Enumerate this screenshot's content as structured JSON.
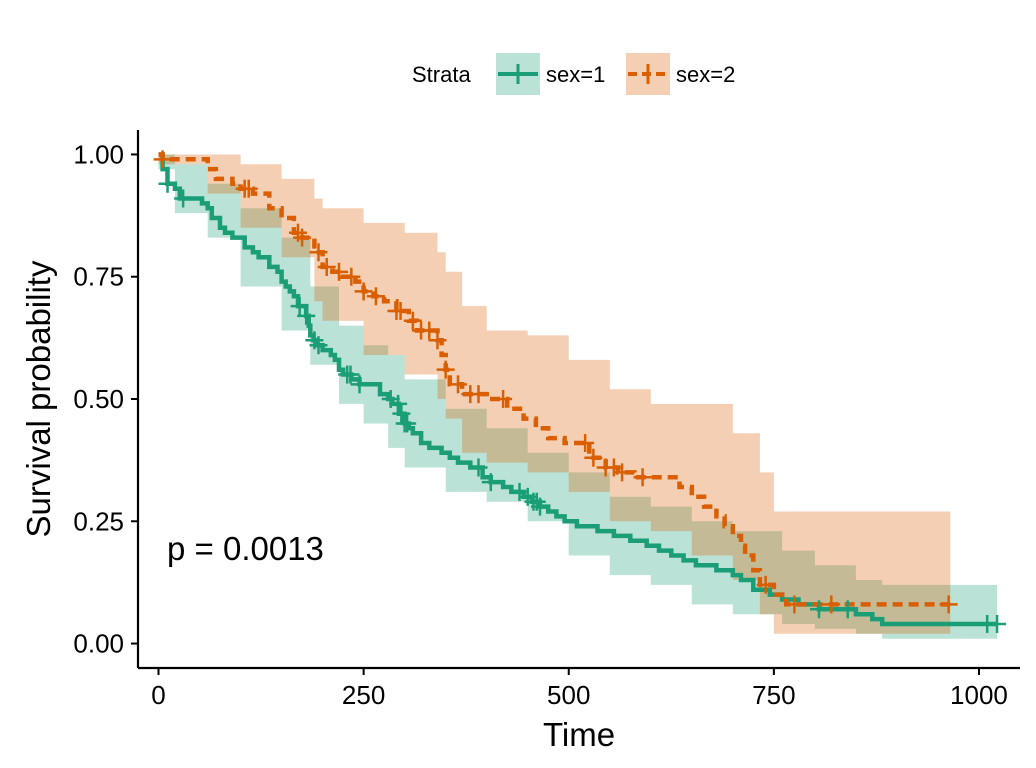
{
  "chart_data": {
    "type": "line",
    "subtype": "kaplan-meier",
    "xlabel": "Time",
    "ylabel": "Survival probability",
    "xlim": [
      -25,
      1050
    ],
    "ylim": [
      -0.05,
      1.05
    ],
    "xticks": [
      0,
      250,
      500,
      750,
      1000
    ],
    "xtick_labels": [
      "0",
      "250",
      "500",
      "750",
      "1000"
    ],
    "yticks": [
      0,
      0.25,
      0.5,
      0.75,
      1.0
    ],
    "ytick_labels": [
      "0.00",
      "0.25",
      "0.50",
      "0.75",
      "1.00"
    ],
    "annotation": "p = 0.0013",
    "grid": false,
    "legend": {
      "title": "Strata",
      "placement": "top",
      "entries": [
        "sex=1",
        "sex=2"
      ]
    },
    "series": [
      {
        "name": "sex=1",
        "color": "#1b9e77",
        "line_style": "solid",
        "steps": [
          [
            0,
            1.0
          ],
          [
            5,
            0.97
          ],
          [
            11,
            0.94
          ],
          [
            20,
            0.93
          ],
          [
            26,
            0.91
          ],
          [
            50,
            0.91
          ],
          [
            53,
            0.9
          ],
          [
            60,
            0.89
          ],
          [
            65,
            0.87
          ],
          [
            75,
            0.85
          ],
          [
            81,
            0.84
          ],
          [
            90,
            0.83
          ],
          [
            105,
            0.81
          ],
          [
            115,
            0.8
          ],
          [
            122,
            0.79
          ],
          [
            135,
            0.77
          ],
          [
            145,
            0.76
          ],
          [
            150,
            0.74
          ],
          [
            155,
            0.73
          ],
          [
            160,
            0.72
          ],
          [
            165,
            0.71
          ],
          [
            170,
            0.69
          ],
          [
            180,
            0.67
          ],
          [
            183,
            0.65
          ],
          [
            185,
            0.63
          ],
          [
            189,
            0.62
          ],
          [
            192,
            0.61
          ],
          [
            200,
            0.6
          ],
          [
            210,
            0.59
          ],
          [
            215,
            0.58
          ],
          [
            220,
            0.56
          ],
          [
            225,
            0.55
          ],
          [
            235,
            0.54
          ],
          [
            245,
            0.53
          ],
          [
            255,
            0.53
          ],
          [
            270,
            0.51
          ],
          [
            280,
            0.5
          ],
          [
            285,
            0.49
          ],
          [
            293,
            0.47
          ],
          [
            300,
            0.45
          ],
          [
            305,
            0.44
          ],
          [
            310,
            0.43
          ],
          [
            320,
            0.41
          ],
          [
            330,
            0.4
          ],
          [
            345,
            0.39
          ],
          [
            355,
            0.38
          ],
          [
            365,
            0.37
          ],
          [
            380,
            0.36
          ],
          [
            395,
            0.34
          ],
          [
            405,
            0.33
          ],
          [
            420,
            0.32
          ],
          [
            430,
            0.31
          ],
          [
            445,
            0.3
          ],
          [
            455,
            0.29
          ],
          [
            465,
            0.28
          ],
          [
            475,
            0.27
          ],
          [
            485,
            0.26
          ],
          [
            495,
            0.25
          ],
          [
            510,
            0.24
          ],
          [
            535,
            0.23
          ],
          [
            555,
            0.22
          ],
          [
            575,
            0.21
          ],
          [
            595,
            0.2
          ],
          [
            610,
            0.19
          ],
          [
            625,
            0.18
          ],
          [
            640,
            0.17
          ],
          [
            655,
            0.16
          ],
          [
            680,
            0.15
          ],
          [
            700,
            0.14
          ],
          [
            710,
            0.13
          ],
          [
            725,
            0.11
          ],
          [
            745,
            0.1
          ],
          [
            760,
            0.09
          ],
          [
            780,
            0.08
          ],
          [
            805,
            0.07
          ],
          [
            850,
            0.06
          ],
          [
            870,
            0.05
          ],
          [
            882,
            0.04
          ],
          [
            1000,
            0.04
          ],
          [
            1022,
            0.04
          ]
        ],
        "ci_upper": [
          [
            0,
            1.0
          ],
          [
            20,
            0.98
          ],
          [
            60,
            0.94
          ],
          [
            100,
            0.89
          ],
          [
            150,
            0.83
          ],
          [
            185,
            0.73
          ],
          [
            220,
            0.65
          ],
          [
            250,
            0.61
          ],
          [
            280,
            0.59
          ],
          [
            300,
            0.54
          ],
          [
            350,
            0.48
          ],
          [
            400,
            0.44
          ],
          [
            450,
            0.39
          ],
          [
            500,
            0.35
          ],
          [
            550,
            0.3
          ],
          [
            600,
            0.28
          ],
          [
            650,
            0.25
          ],
          [
            700,
            0.23
          ],
          [
            760,
            0.19
          ],
          [
            800,
            0.16
          ],
          [
            850,
            0.13
          ],
          [
            882,
            0.12
          ],
          [
            1022,
            0.12
          ]
        ],
        "ci_lower": [
          [
            0,
            0.97
          ],
          [
            20,
            0.88
          ],
          [
            60,
            0.83
          ],
          [
            100,
            0.73
          ],
          [
            150,
            0.64
          ],
          [
            185,
            0.57
          ],
          [
            220,
            0.49
          ],
          [
            250,
            0.45
          ],
          [
            280,
            0.4
          ],
          [
            300,
            0.36
          ],
          [
            350,
            0.31
          ],
          [
            400,
            0.29
          ],
          [
            450,
            0.25
          ],
          [
            500,
            0.18
          ],
          [
            550,
            0.14
          ],
          [
            600,
            0.12
          ],
          [
            650,
            0.08
          ],
          [
            700,
            0.06
          ],
          [
            760,
            0.04
          ],
          [
            800,
            0.03
          ],
          [
            850,
            0.02
          ],
          [
            882,
            0.01
          ],
          [
            1022,
            0.01
          ]
        ],
        "censor_times": [
          11,
          30,
          172,
          180,
          190,
          195,
          230,
          234,
          245,
          283,
          292,
          296,
          300,
          303,
          390,
          405,
          440,
          450,
          457,
          461,
          465,
          805,
          840,
          1010,
          1022
        ]
      },
      {
        "name": "sex=2",
        "color": "#d95f02",
        "line_style": "dashed",
        "steps": [
          [
            0,
            1.0
          ],
          [
            5,
            0.99
          ],
          [
            60,
            0.97
          ],
          [
            70,
            0.95
          ],
          [
            90,
            0.94
          ],
          [
            100,
            0.93
          ],
          [
            115,
            0.92
          ],
          [
            135,
            0.89
          ],
          [
            150,
            0.87
          ],
          [
            165,
            0.84
          ],
          [
            175,
            0.83
          ],
          [
            190,
            0.8
          ],
          [
            200,
            0.77
          ],
          [
            212,
            0.76
          ],
          [
            222,
            0.75
          ],
          [
            240,
            0.74
          ],
          [
            250,
            0.72
          ],
          [
            262,
            0.71
          ],
          [
            275,
            0.7
          ],
          [
            290,
            0.68
          ],
          [
            305,
            0.66
          ],
          [
            315,
            0.64
          ],
          [
            340,
            0.62
          ],
          [
            345,
            0.59
          ],
          [
            350,
            0.56
          ],
          [
            355,
            0.53
          ],
          [
            370,
            0.51
          ],
          [
            400,
            0.5
          ],
          [
            425,
            0.48
          ],
          [
            445,
            0.46
          ],
          [
            460,
            0.44
          ],
          [
            475,
            0.42
          ],
          [
            495,
            0.41
          ],
          [
            525,
            0.38
          ],
          [
            545,
            0.36
          ],
          [
            560,
            0.35
          ],
          [
            580,
            0.34
          ],
          [
            635,
            0.32
          ],
          [
            650,
            0.3
          ],
          [
            665,
            0.28
          ],
          [
            680,
            0.26
          ],
          [
            690,
            0.24
          ],
          [
            700,
            0.22
          ],
          [
            710,
            0.2
          ],
          [
            715,
            0.18
          ],
          [
            725,
            0.15
          ],
          [
            733,
            0.12
          ],
          [
            750,
            0.1
          ],
          [
            765,
            0.08
          ],
          [
            965,
            0.08
          ]
        ],
        "ci_upper": [
          [
            0,
            1.0
          ],
          [
            60,
            1.0
          ],
          [
            100,
            0.98
          ],
          [
            150,
            0.95
          ],
          [
            190,
            0.91
          ],
          [
            200,
            0.89
          ],
          [
            250,
            0.86
          ],
          [
            300,
            0.84
          ],
          [
            340,
            0.8
          ],
          [
            350,
            0.76
          ],
          [
            370,
            0.69
          ],
          [
            400,
            0.64
          ],
          [
            450,
            0.63
          ],
          [
            500,
            0.58
          ],
          [
            550,
            0.52
          ],
          [
            600,
            0.49
          ],
          [
            650,
            0.49
          ],
          [
            700,
            0.43
          ],
          [
            733,
            0.35
          ],
          [
            750,
            0.27
          ],
          [
            850,
            0.27
          ],
          [
            965,
            0.27
          ]
        ],
        "ci_lower": [
          [
            0,
            0.98
          ],
          [
            60,
            0.92
          ],
          [
            100,
            0.85
          ],
          [
            150,
            0.79
          ],
          [
            190,
            0.7
          ],
          [
            200,
            0.66
          ],
          [
            250,
            0.59
          ],
          [
            300,
            0.55
          ],
          [
            340,
            0.5
          ],
          [
            350,
            0.46
          ],
          [
            370,
            0.39
          ],
          [
            400,
            0.37
          ],
          [
            450,
            0.35
          ],
          [
            500,
            0.31
          ],
          [
            550,
            0.25
          ],
          [
            600,
            0.23
          ],
          [
            650,
            0.18
          ],
          [
            700,
            0.13
          ],
          [
            733,
            0.06
          ],
          [
            750,
            0.02
          ],
          [
            850,
            0.02
          ],
          [
            965,
            0.02
          ]
        ],
        "censor_times": [
          5,
          105,
          110,
          170,
          175,
          195,
          205,
          220,
          235,
          250,
          265,
          290,
          295,
          310,
          320,
          330,
          340,
          350,
          365,
          380,
          390,
          420,
          520,
          530,
          545,
          555,
          565,
          590,
          740,
          775,
          820,
          963
        ]
      }
    ]
  }
}
